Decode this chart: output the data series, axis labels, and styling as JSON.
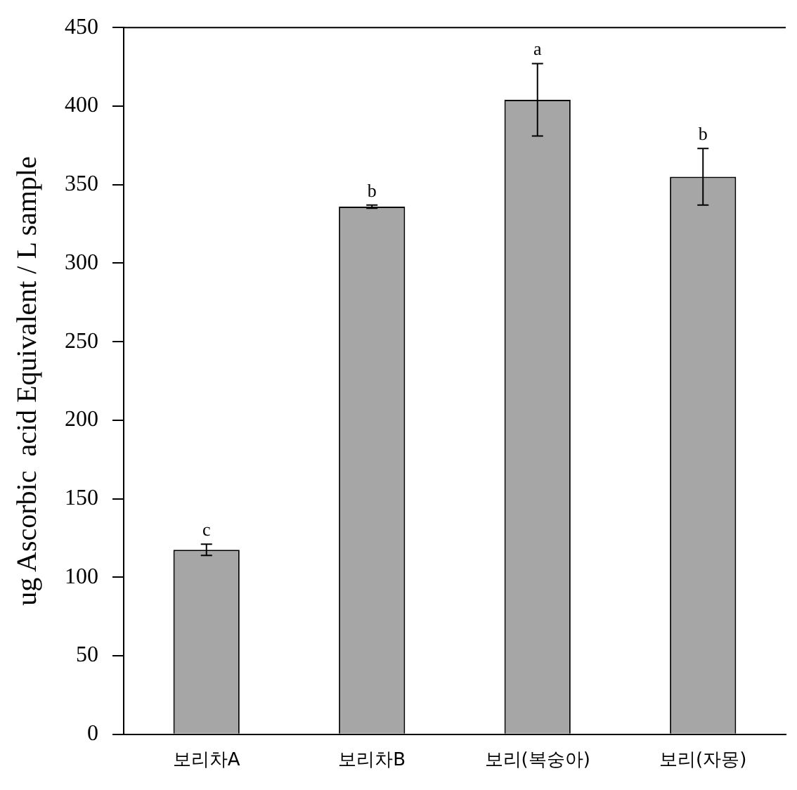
{
  "chart_data": {
    "type": "bar",
    "ylabel": "ug Ascorbic  acid Equivalent / L sample",
    "categories": [
      "보리차A",
      "보리차B",
      "보리(복숭아)",
      "보리(자몽)"
    ],
    "values": [
      117.5,
      336,
      404,
      355
    ],
    "errors": [
      3.6,
      1,
      23,
      18
    ],
    "color": "#a6a6a6",
    "ylim": [
      0,
      450
    ],
    "yticks": [
      0,
      50,
      100,
      150,
      200,
      250,
      300,
      350,
      400,
      450
    ],
    "grid": false,
    "legend": false,
    "annotations": [
      {
        "text": "c",
        "x": "보리차A",
        "y": 121.1
      },
      {
        "text": "b",
        "x": "보리차B",
        "y": 337
      },
      {
        "text": "a",
        "x": "보리(복숭아)",
        "y": 427
      },
      {
        "text": "b",
        "x": "보리(자몽)",
        "y": 373
      }
    ]
  }
}
